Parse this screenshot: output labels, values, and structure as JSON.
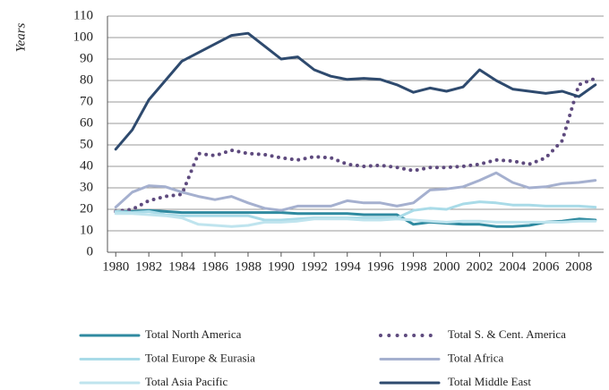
{
  "chart_data": {
    "type": "line",
    "y_label": "Years",
    "x": [
      1980,
      1981,
      1982,
      1983,
      1984,
      1985,
      1986,
      1987,
      1988,
      1989,
      1990,
      1991,
      1992,
      1993,
      1994,
      1995,
      1996,
      1997,
      1998,
      1999,
      2000,
      2001,
      2002,
      2003,
      2004,
      2005,
      2006,
      2007,
      2008,
      2009
    ],
    "xlim": [
      1979.5,
      2009.5
    ],
    "xticks": [
      1980,
      1982,
      1984,
      1986,
      1988,
      1990,
      1992,
      1994,
      1996,
      1998,
      2000,
      2002,
      2004,
      2006,
      2008
    ],
    "ylim": [
      0,
      110
    ],
    "yticks": [
      0,
      10,
      20,
      30,
      40,
      50,
      60,
      70,
      80,
      90,
      100,
      110
    ],
    "grid": true,
    "legend": "bottom",
    "series": [
      {
        "name": "Total North America",
        "color": "#2f8aa0",
        "style": "solid",
        "values": [
          19,
          19,
          19.5,
          19,
          18.5,
          18.5,
          18.5,
          18.5,
          18.5,
          18.5,
          18.5,
          18,
          18,
          18,
          18,
          17.5,
          17.5,
          17.5,
          13,
          14,
          13.5,
          13,
          13,
          12,
          12,
          12.5,
          14,
          14.5,
          15.5,
          15
        ]
      },
      {
        "name": "Total S. & Cent. America",
        "color": "#5e4a7e",
        "style": "dotted",
        "values": [
          19,
          20,
          24,
          26,
          27,
          46,
          45,
          47.5,
          46,
          45.5,
          44,
          43,
          44.5,
          44,
          41,
          40,
          40.5,
          39.5,
          38,
          39.5,
          39.5,
          40,
          41,
          43,
          42.5,
          41,
          44,
          52,
          78,
          81
        ]
      },
      {
        "name": "Total Europe & Eurasia",
        "color": "#a9dbe8",
        "style": "solid",
        "values": [
          19,
          18.5,
          19,
          17.5,
          17,
          17,
          17,
          17,
          17,
          15,
          15,
          15.5,
          16,
          16,
          16,
          16,
          16,
          16,
          19.5,
          20.5,
          20,
          22.5,
          23.5,
          23,
          22,
          22,
          21.5,
          21.5,
          21.5,
          21
        ]
      },
      {
        "name": "Total Africa",
        "color": "#a5b0cf",
        "style": "solid",
        "values": [
          21,
          28,
          31,
          30.5,
          28,
          26,
          24.5,
          26,
          23,
          20.5,
          19.5,
          21.5,
          21.5,
          21.5,
          24,
          23,
          23,
          21.5,
          23,
          29,
          29.5,
          30.5,
          33.5,
          37,
          32.5,
          30,
          30.5,
          32,
          32.5,
          33.5
        ]
      },
      {
        "name": "Total Asia Pacific",
        "color": "#bfe4ee",
        "style": "solid",
        "values": [
          18,
          18,
          17.5,
          17,
          16,
          13,
          12.5,
          12,
          12.5,
          14,
          14,
          14.5,
          15.5,
          15.5,
          15.5,
          15,
          15,
          15.5,
          15,
          14.5,
          14,
          14.5,
          14.5,
          14,
          14,
          14,
          14,
          14,
          14.5,
          14.5
        ]
      },
      {
        "name": "Total Middle East",
        "color": "#2e4a6e",
        "style": "solid",
        "values": [
          48,
          57,
          71,
          80,
          89,
          93,
          97,
          101,
          102,
          96,
          90,
          91,
          85,
          82,
          80.5,
          81,
          80.5,
          78,
          74.5,
          76.5,
          75,
          77,
          85,
          80,
          76,
          75,
          74,
          75,
          72.5,
          78
        ]
      }
    ]
  }
}
